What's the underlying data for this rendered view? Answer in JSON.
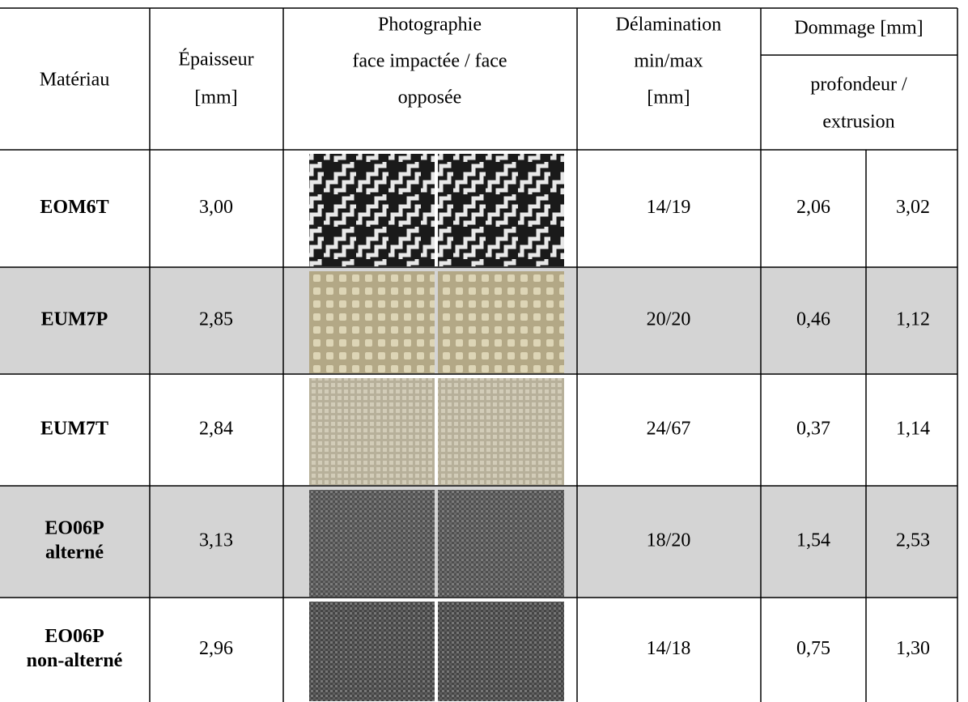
{
  "header": {
    "material": "Matériau",
    "thickness": [
      "Épaisseur",
      "[mm]"
    ],
    "photo": [
      "Photographie",
      "face impactée / face",
      "opposée"
    ],
    "delamination": [
      "Délamination",
      "min/max",
      "[mm]"
    ],
    "damage": "Dommage [mm]",
    "damage_sub": [
      "profondeur /",
      "extrusion"
    ]
  },
  "rows": [
    {
      "material": [
        "EOM6T"
      ],
      "thickness": "3,00",
      "delamination": "14/19",
      "depth": "2,06",
      "extrusion": "3,02"
    },
    {
      "material": [
        "EUM7P"
      ],
      "thickness": "2,85",
      "delamination": "20/20",
      "depth": "0,46",
      "extrusion": "1,12"
    },
    {
      "material": [
        "EUM7T"
      ],
      "thickness": "2,84",
      "delamination": "24/67",
      "depth": "0,37",
      "extrusion": "1,14"
    },
    {
      "material": [
        "EO06P",
        "alterné"
      ],
      "thickness": "3,13",
      "delamination": "18/20",
      "depth": "1,54",
      "extrusion": "2,53"
    },
    {
      "material": [
        "EO06P",
        "non-alterné"
      ],
      "thickness": "2,96",
      "delamination": "14/18",
      "depth": "0,75",
      "extrusion": "1,30"
    }
  ]
}
